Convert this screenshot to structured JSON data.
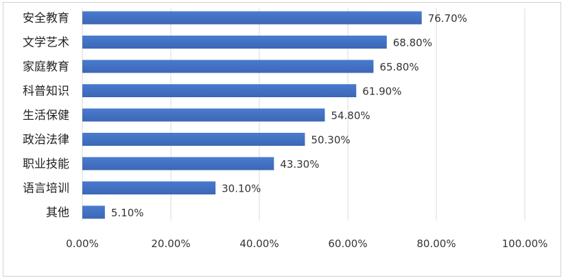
{
  "chart_data": {
    "type": "bar",
    "orientation": "horizontal",
    "categories": [
      "安全教育",
      "文学艺术",
      "家庭教育",
      "科普知识",
      "生活保健",
      "政治法律",
      "职业技能",
      "语言培训",
      "其他"
    ],
    "values": [
      76.7,
      68.8,
      65.8,
      61.9,
      54.8,
      50.3,
      43.3,
      30.1,
      5.1
    ],
    "data_labels": [
      "76.70%",
      "68.80%",
      "65.80%",
      "61.90%",
      "54.80%",
      "50.30%",
      "43.30%",
      "30.10%",
      "5.10%"
    ],
    "x_ticks": [
      "0.00%",
      "20.00%",
      "40.00%",
      "60.00%",
      "80.00%",
      "100.00%"
    ],
    "xlim": [
      0,
      100
    ],
    "grid": true,
    "legend": "none",
    "bar_color": "#3c67b4",
    "bar_color_light": "#4a7bd0",
    "gridline_color": "#d9d9d9"
  }
}
